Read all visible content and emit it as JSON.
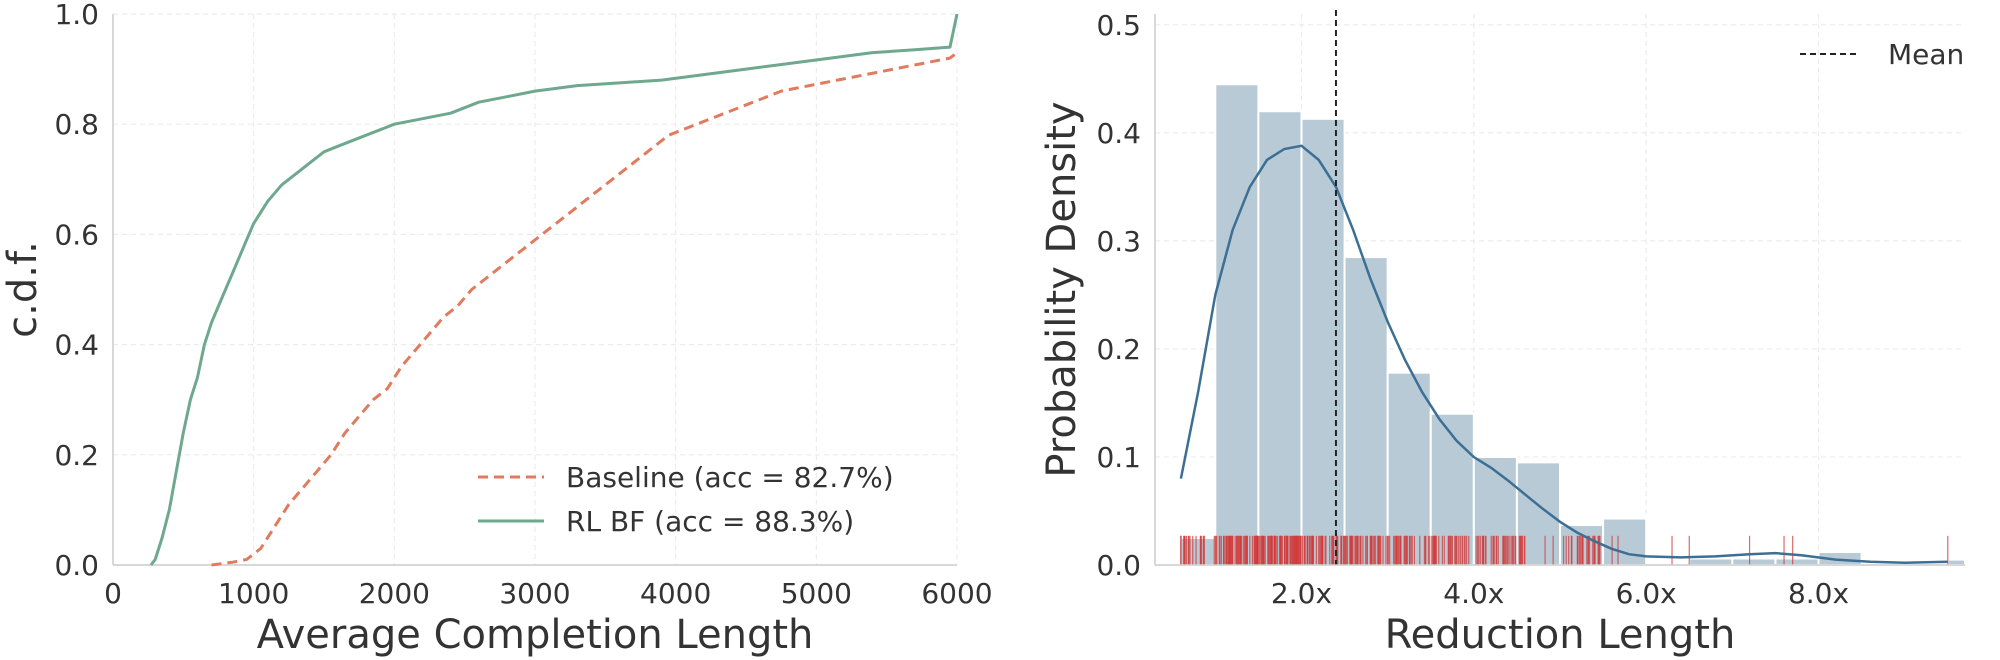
{
  "chart_data": [
    {
      "type": "line",
      "subtype": "cdf",
      "xlabel": "Average Completion Length",
      "ylabel": "c.d.f.",
      "xlim": [
        0,
        6000
      ],
      "ylim": [
        0,
        1
      ],
      "xticks": [
        "0",
        "1000",
        "2000",
        "3000",
        "4000",
        "5000",
        "6000"
      ],
      "yticks": [
        "0.0",
        "0.2",
        "0.4",
        "0.6",
        "0.8",
        "1.0"
      ],
      "grid": true,
      "legend_position": "lower-right",
      "series": [
        {
          "name": "Baseline (acc = 82.7%)",
          "color": "#e07b5f",
          "style": "dashed",
          "points": [
            [
              700,
              0
            ],
            [
              850,
              0.005
            ],
            [
              950,
              0.01
            ],
            [
              1050,
              0.03
            ],
            [
              1150,
              0.07
            ],
            [
              1250,
              0.11
            ],
            [
              1350,
              0.14
            ],
            [
              1450,
              0.17
            ],
            [
              1550,
              0.2
            ],
            [
              1650,
              0.24
            ],
            [
              1750,
              0.27
            ],
            [
              1850,
              0.3
            ],
            [
              1950,
              0.32
            ],
            [
              2050,
              0.36
            ],
            [
              2150,
              0.39
            ],
            [
              2250,
              0.42
            ],
            [
              2350,
              0.45
            ],
            [
              2450,
              0.47
            ],
            [
              2550,
              0.5
            ],
            [
              2650,
              0.52
            ],
            [
              2750,
              0.54
            ],
            [
              2850,
              0.56
            ],
            [
              2950,
              0.58
            ],
            [
              3050,
              0.6
            ],
            [
              3150,
              0.62
            ],
            [
              3250,
              0.64
            ],
            [
              3350,
              0.66
            ],
            [
              3450,
              0.68
            ],
            [
              3550,
              0.7
            ],
            [
              3650,
              0.72
            ],
            [
              3750,
              0.74
            ],
            [
              3850,
              0.76
            ],
            [
              3950,
              0.78
            ],
            [
              4050,
              0.79
            ],
            [
              4150,
              0.8
            ],
            [
              4250,
              0.81
            ],
            [
              4350,
              0.82
            ],
            [
              4450,
              0.83
            ],
            [
              4550,
              0.84
            ],
            [
              4650,
              0.85
            ],
            [
              4750,
              0.86
            ],
            [
              4850,
              0.865
            ],
            [
              4950,
              0.87
            ],
            [
              5050,
              0.875
            ],
            [
              5150,
              0.88
            ],
            [
              5250,
              0.885
            ],
            [
              5350,
              0.89
            ],
            [
              5450,
              0.895
            ],
            [
              5550,
              0.9
            ],
            [
              5650,
              0.905
            ],
            [
              5750,
              0.91
            ],
            [
              5850,
              0.915
            ],
            [
              5950,
              0.92
            ],
            [
              6000,
              0.93
            ]
          ]
        },
        {
          "name": "RL BF (acc = 88.3%)",
          "color": "#6ea88e",
          "style": "solid",
          "points": [
            [
              270,
              0
            ],
            [
              300,
              0.01
            ],
            [
              350,
              0.05
            ],
            [
              400,
              0.1
            ],
            [
              450,
              0.17
            ],
            [
              500,
              0.24
            ],
            [
              550,
              0.3
            ],
            [
              600,
              0.34
            ],
            [
              650,
              0.4
            ],
            [
              700,
              0.44
            ],
            [
              750,
              0.47
            ],
            [
              800,
              0.5
            ],
            [
              850,
              0.53
            ],
            [
              900,
              0.56
            ],
            [
              950,
              0.59
            ],
            [
              1000,
              0.62
            ],
            [
              1100,
              0.66
            ],
            [
              1200,
              0.69
            ],
            [
              1300,
              0.71
            ],
            [
              1400,
              0.73
            ],
            [
              1500,
              0.75
            ],
            [
              1600,
              0.76
            ],
            [
              1700,
              0.77
            ],
            [
              1800,
              0.78
            ],
            [
              1900,
              0.79
            ],
            [
              2000,
              0.8
            ],
            [
              2200,
              0.81
            ],
            [
              2400,
              0.82
            ],
            [
              2600,
              0.84
            ],
            [
              2800,
              0.85
            ],
            [
              3000,
              0.86
            ],
            [
              3300,
              0.87
            ],
            [
              3600,
              0.875
            ],
            [
              3900,
              0.88
            ],
            [
              4200,
              0.89
            ],
            [
              4500,
              0.9
            ],
            [
              4800,
              0.91
            ],
            [
              5100,
              0.92
            ],
            [
              5400,
              0.93
            ],
            [
              5700,
              0.935
            ],
            [
              5950,
              0.94
            ],
            [
              6000,
              1.0
            ]
          ]
        }
      ]
    },
    {
      "type": "bar",
      "subtype": "histogram-with-kde-and-rug",
      "xlabel": "Reduction Length",
      "ylabel": "Probability Density",
      "xlim": [
        0.3,
        9.7
      ],
      "ylim": [
        0,
        0.51
      ],
      "xticks": [
        "2.0x",
        "4.0x",
        "6.0x",
        "8.0x"
      ],
      "yticks": [
        "0.0",
        "0.1",
        "0.2",
        "0.3",
        "0.4",
        "0.5"
      ],
      "grid": true,
      "legend_position": "top-right",
      "legend": [
        {
          "name": "Mean",
          "style": "dashed",
          "color": "#222222"
        }
      ],
      "bar_color": "#b7cad6",
      "kde_color": "#3d6f94",
      "rug_color": "#d23a3a",
      "mean": 2.4,
      "bins": [
        {
          "x0": 0.6,
          "x1": 1.0,
          "value": 0.025
        },
        {
          "x0": 1.0,
          "x1": 1.5,
          "value": 0.445
        },
        {
          "x0": 1.5,
          "x1": 2.0,
          "value": 0.42
        },
        {
          "x0": 2.0,
          "x1": 2.5,
          "value": 0.413
        },
        {
          "x0": 2.5,
          "x1": 3.0,
          "value": 0.285
        },
        {
          "x0": 3.0,
          "x1": 3.5,
          "value": 0.178
        },
        {
          "x0": 3.5,
          "x1": 4.0,
          "value": 0.14
        },
        {
          "x0": 4.0,
          "x1": 4.5,
          "value": 0.1
        },
        {
          "x0": 4.5,
          "x1": 5.0,
          "value": 0.095
        },
        {
          "x0": 5.0,
          "x1": 5.5,
          "value": 0.037
        },
        {
          "x0": 5.5,
          "x1": 6.0,
          "value": 0.043
        },
        {
          "x0": 6.0,
          "x1": 6.5,
          "value": 0.0
        },
        {
          "x0": 6.5,
          "x1": 7.0,
          "value": 0.006
        },
        {
          "x0": 7.0,
          "x1": 7.5,
          "value": 0.006
        },
        {
          "x0": 7.5,
          "x1": 8.0,
          "value": 0.006
        },
        {
          "x0": 8.0,
          "x1": 8.5,
          "value": 0.012
        },
        {
          "x0": 8.5,
          "x1": 9.0,
          "value": 0.0
        },
        {
          "x0": 9.0,
          "x1": 9.5,
          "value": 0.0
        },
        {
          "x0": 9.5,
          "x1": 10.0,
          "value": 0.005
        }
      ],
      "kde": [
        [
          0.6,
          0.08
        ],
        [
          0.8,
          0.16
        ],
        [
          1.0,
          0.25
        ],
        [
          1.2,
          0.31
        ],
        [
          1.4,
          0.35
        ],
        [
          1.6,
          0.375
        ],
        [
          1.8,
          0.385
        ],
        [
          2.0,
          0.388
        ],
        [
          2.2,
          0.375
        ],
        [
          2.4,
          0.35
        ],
        [
          2.6,
          0.31
        ],
        [
          2.8,
          0.265
        ],
        [
          3.0,
          0.225
        ],
        [
          3.2,
          0.19
        ],
        [
          3.4,
          0.16
        ],
        [
          3.6,
          0.135
        ],
        [
          3.8,
          0.115
        ],
        [
          4.0,
          0.1
        ],
        [
          4.2,
          0.09
        ],
        [
          4.4,
          0.078
        ],
        [
          4.6,
          0.065
        ],
        [
          4.8,
          0.052
        ],
        [
          5.0,
          0.04
        ],
        [
          5.2,
          0.03
        ],
        [
          5.4,
          0.022
        ],
        [
          5.6,
          0.015
        ],
        [
          5.8,
          0.01
        ],
        [
          6.0,
          0.008
        ],
        [
          6.4,
          0.007
        ],
        [
          6.8,
          0.008
        ],
        [
          7.2,
          0.01
        ],
        [
          7.5,
          0.011
        ],
        [
          7.8,
          0.009
        ],
        [
          8.2,
          0.005
        ],
        [
          8.6,
          0.003
        ],
        [
          9.0,
          0.002
        ],
        [
          9.5,
          0.003
        ]
      ]
    }
  ]
}
